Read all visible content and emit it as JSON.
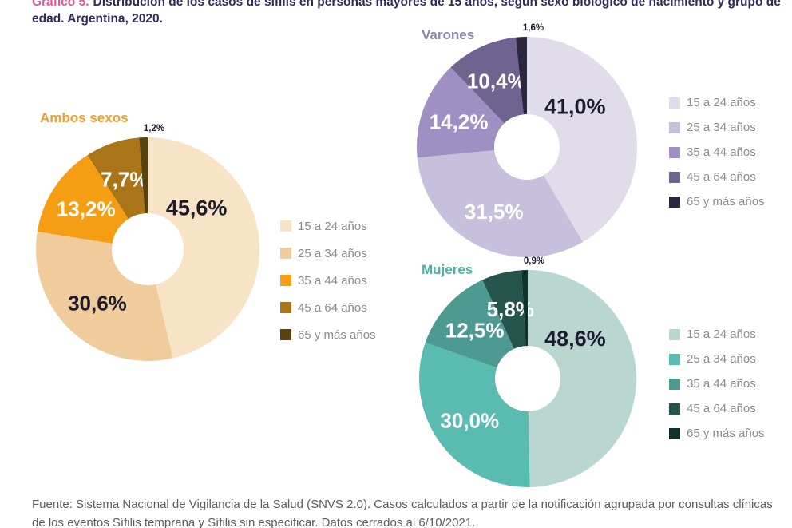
{
  "title": {
    "prefix": "Gráfico 5.",
    "text": "Distribución de los casos de sífilis en personas mayores de 15 años, según sexo biológico de nacimiento y grupo de edad. Argentina, 2020."
  },
  "footer": "Fuente: Sistema Nacional de Vigilancia de la Salud (SNVS 2.0). Casos calculados a partir de la notificación agrupada por consultas clínicas de los eventos Sífilis temprana y Sífilis sin especificar. Datos cerrados al 6/10/2021.",
  "colors": {
    "title_prefix": "#e8559b",
    "title_text": "#2d2c5a",
    "legend_label": "#8c8c8c",
    "footer_text": "#5d5d5d",
    "background": "#ffffff",
    "dark_label": "#1c1c2e",
    "light_label": "#ffffff"
  },
  "chart_data": [
    {
      "type": "pie",
      "donut": true,
      "title": "Ambos sexos",
      "title_color": "#ef9d2f",
      "legend_position": "right",
      "categories": [
        "15 a 24 años",
        "25 a 34 años",
        "35 a 44 años",
        "45 a 64 años",
        "65 y más años"
      ],
      "values": [
        45.6,
        30.6,
        13.2,
        7.7,
        1.2
      ],
      "labels": [
        "45,6%",
        "30,6%",
        "13,2%",
        "7,7%",
        "1,2%"
      ],
      "slice_colors": [
        "#f7e3c6",
        "#f0cc9d",
        "#f59d13",
        "#aa7419",
        "#57430f"
      ],
      "label_colors": [
        "#1c1c2e",
        "#1c1c2e",
        "#ffffff",
        "#ffffff",
        "#1c1c2e"
      ]
    },
    {
      "type": "pie",
      "donut": true,
      "title": "Varones",
      "title_color": "#8d87ab",
      "legend_position": "right",
      "categories": [
        "15 a 24 años",
        "25 a 34 años",
        "35 a 44 años",
        "45 a 64 años",
        "65 y más años"
      ],
      "values": [
        41.0,
        31.5,
        14.2,
        10.4,
        1.6
      ],
      "labels": [
        "41,0%",
        "31,5%",
        "14,2%",
        "10,4%",
        "1,6%"
      ],
      "slice_colors": [
        "#e0dcea",
        "#c7c0dc",
        "#a08fc2",
        "#6f6390",
        "#2b2740"
      ],
      "label_colors": [
        "#1c1c2e",
        "#ffffff",
        "#ffffff",
        "#ffffff",
        "#1c1c2e"
      ]
    },
    {
      "type": "pie",
      "donut": true,
      "title": "Mujeres",
      "title_color": "#4cb2a6",
      "legend_position": "right",
      "categories": [
        "15 a 24 años",
        "25 a 34 años",
        "35 a 44 años",
        "45 a 64 años",
        "65 y más años"
      ],
      "values": [
        48.6,
        30.0,
        12.5,
        5.8,
        0.9
      ],
      "labels": [
        "48,6%",
        "30,0%",
        "12,5%",
        "5,8%",
        "0,9%"
      ],
      "slice_colors": [
        "#b9d7d0",
        "#5abcb1",
        "#4d9a93",
        "#24544b",
        "#10322c"
      ],
      "label_colors": [
        "#1c1c2e",
        "#ffffff",
        "#ffffff",
        "#ffffff",
        "#1c1c2e"
      ]
    }
  ]
}
